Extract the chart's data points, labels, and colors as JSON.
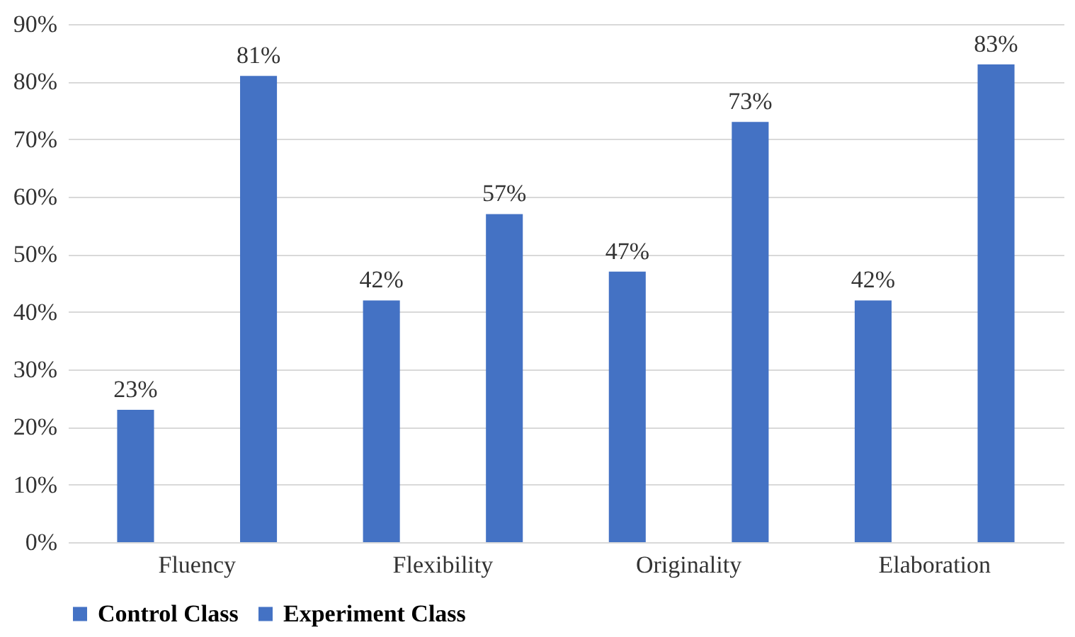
{
  "chart_data": {
    "type": "bar",
    "categories": [
      "Fluency",
      "Flexibility",
      "Originality",
      "Elaboration"
    ],
    "series": [
      {
        "name": "Control Class",
        "color": "#4472c4",
        "values": [
          23,
          42,
          47,
          42
        ],
        "value_labels": [
          "23%",
          "42%",
          "47%",
          "42%"
        ]
      },
      {
        "name": "Experiment Class",
        "color": "#4472c4",
        "values": [
          81,
          57,
          73,
          83
        ],
        "value_labels": [
          "81%",
          "57%",
          "73%",
          "83%"
        ]
      }
    ],
    "ylim": [
      0,
      90
    ],
    "yticks": [
      {
        "value": 0,
        "label": "0%"
      },
      {
        "value": 10,
        "label": "10%"
      },
      {
        "value": 20,
        "label": "20%"
      },
      {
        "value": 30,
        "label": "30%"
      },
      {
        "value": 40,
        "label": "40%"
      },
      {
        "value": 50,
        "label": "50%"
      },
      {
        "value": 60,
        "label": "60%"
      },
      {
        "value": 70,
        "label": "70%"
      },
      {
        "value": 80,
        "label": "80%"
      },
      {
        "value": 90,
        "label": "90%"
      }
    ],
    "grid": "y",
    "legend": "bottom"
  }
}
